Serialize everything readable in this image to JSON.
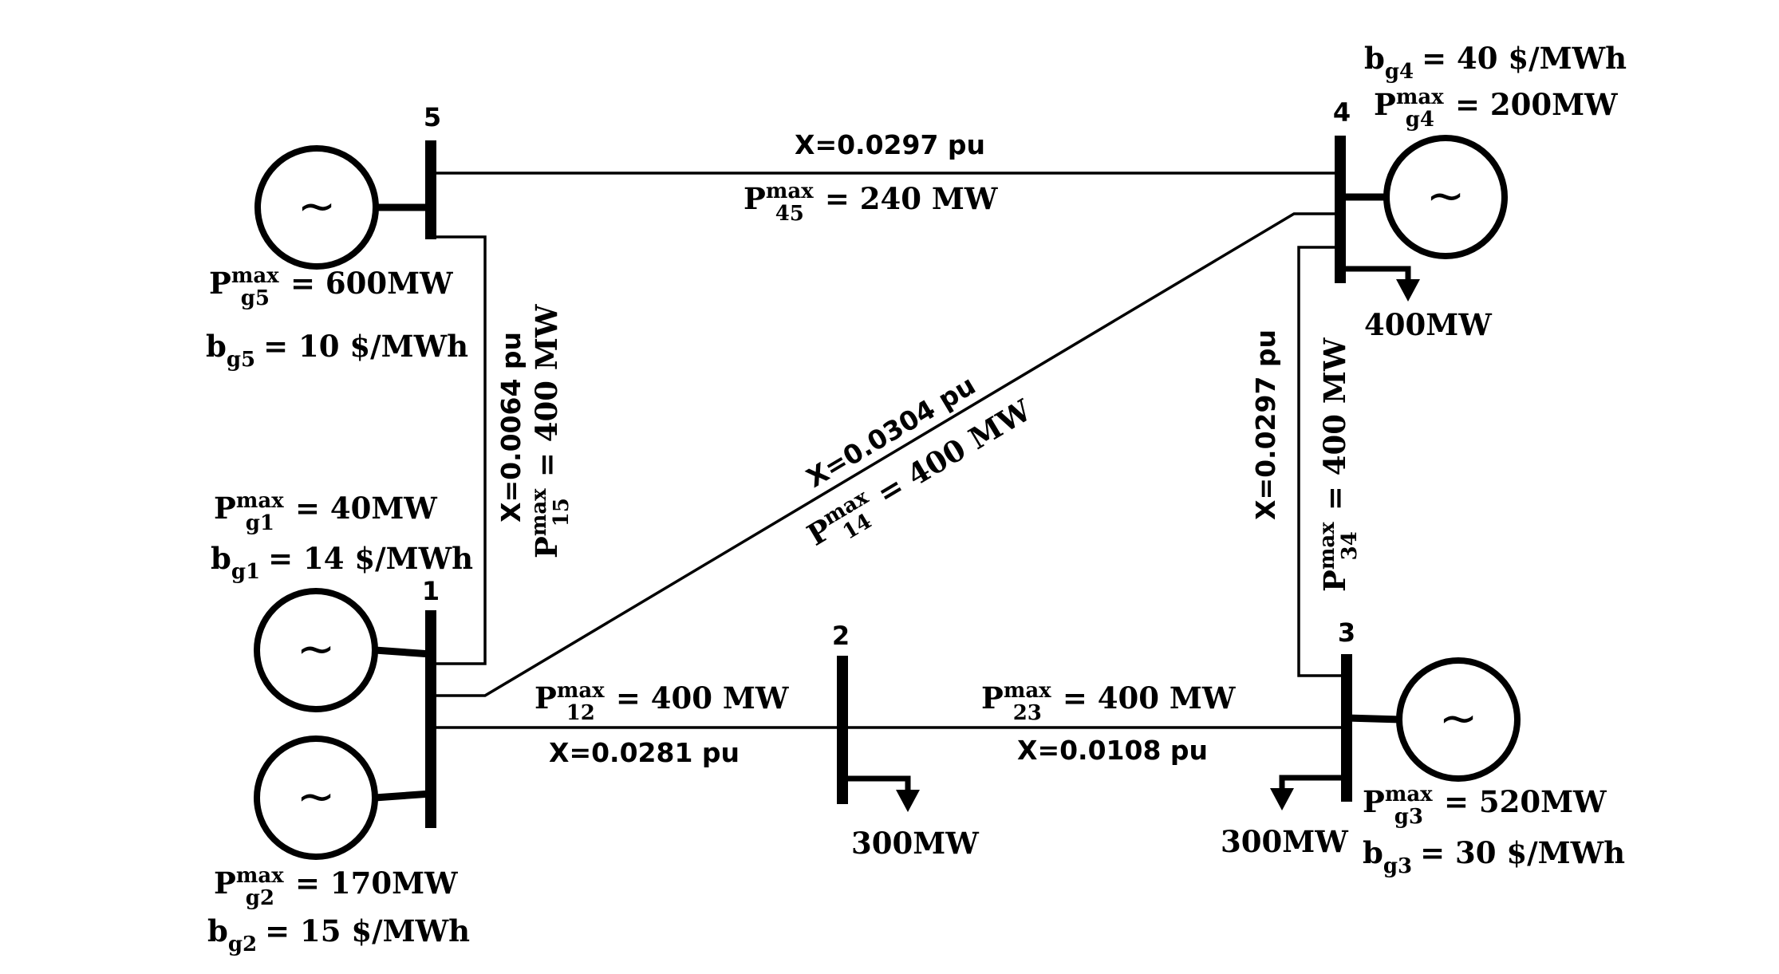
{
  "buses": {
    "b1": "1",
    "b2": "2",
    "b3": "3",
    "b4": "4",
    "b5": "5"
  },
  "lines": {
    "l45": {
      "x": "X=0.0297 pu",
      "pmax_sub": "45",
      "pmax_value": "= 240 MW"
    },
    "l15": {
      "x": "X=0.0064 pu",
      "pmax_sub": "15",
      "pmax_value": "= 400 MW"
    },
    "l14": {
      "x": "X=0.0304 pu",
      "pmax_sub": "14",
      "pmax_value": "= 400 MW"
    },
    "l34": {
      "x": "X=0.0297 pu",
      "pmax_sub": "34",
      "pmax_value": "= 400 MW"
    },
    "l12": {
      "x": "X=0.0281 pu",
      "pmax_sub": "12",
      "pmax_value": "= 400 MW"
    },
    "l23": {
      "x": "X=0.0108 pu",
      "pmax_sub": "23",
      "pmax_value": "= 400 MW"
    }
  },
  "generators": {
    "g1": {
      "pmax_sub": "g1",
      "pmax_value": "= 40MW",
      "b_sub": "g1",
      "b_value": "= 14 $/MWh"
    },
    "g2": {
      "pmax_sub": "g2",
      "pmax_value": "= 170MW",
      "b_sub": "g2",
      "b_value": "= 15 $/MWh"
    },
    "g3": {
      "pmax_sub": "g3",
      "pmax_value": "= 520MW",
      "b_sub": "g3",
      "b_value": "= 30 $/MWh"
    },
    "g4": {
      "pmax_sub": "g4",
      "pmax_value": "= 200MW",
      "b_sub": "g4",
      "b_value": "= 40 $/MWh"
    },
    "g5": {
      "pmax_sub": "g5",
      "pmax_value": "= 600MW",
      "b_sub": "g5",
      "b_value": "= 10 $/MWh"
    }
  },
  "loads": {
    "bus2": "300MW",
    "bus3": "300MW",
    "bus4": "400MW"
  },
  "symbols": {
    "p": "P",
    "b": "b",
    "max": "max",
    "ac_source": "~"
  }
}
